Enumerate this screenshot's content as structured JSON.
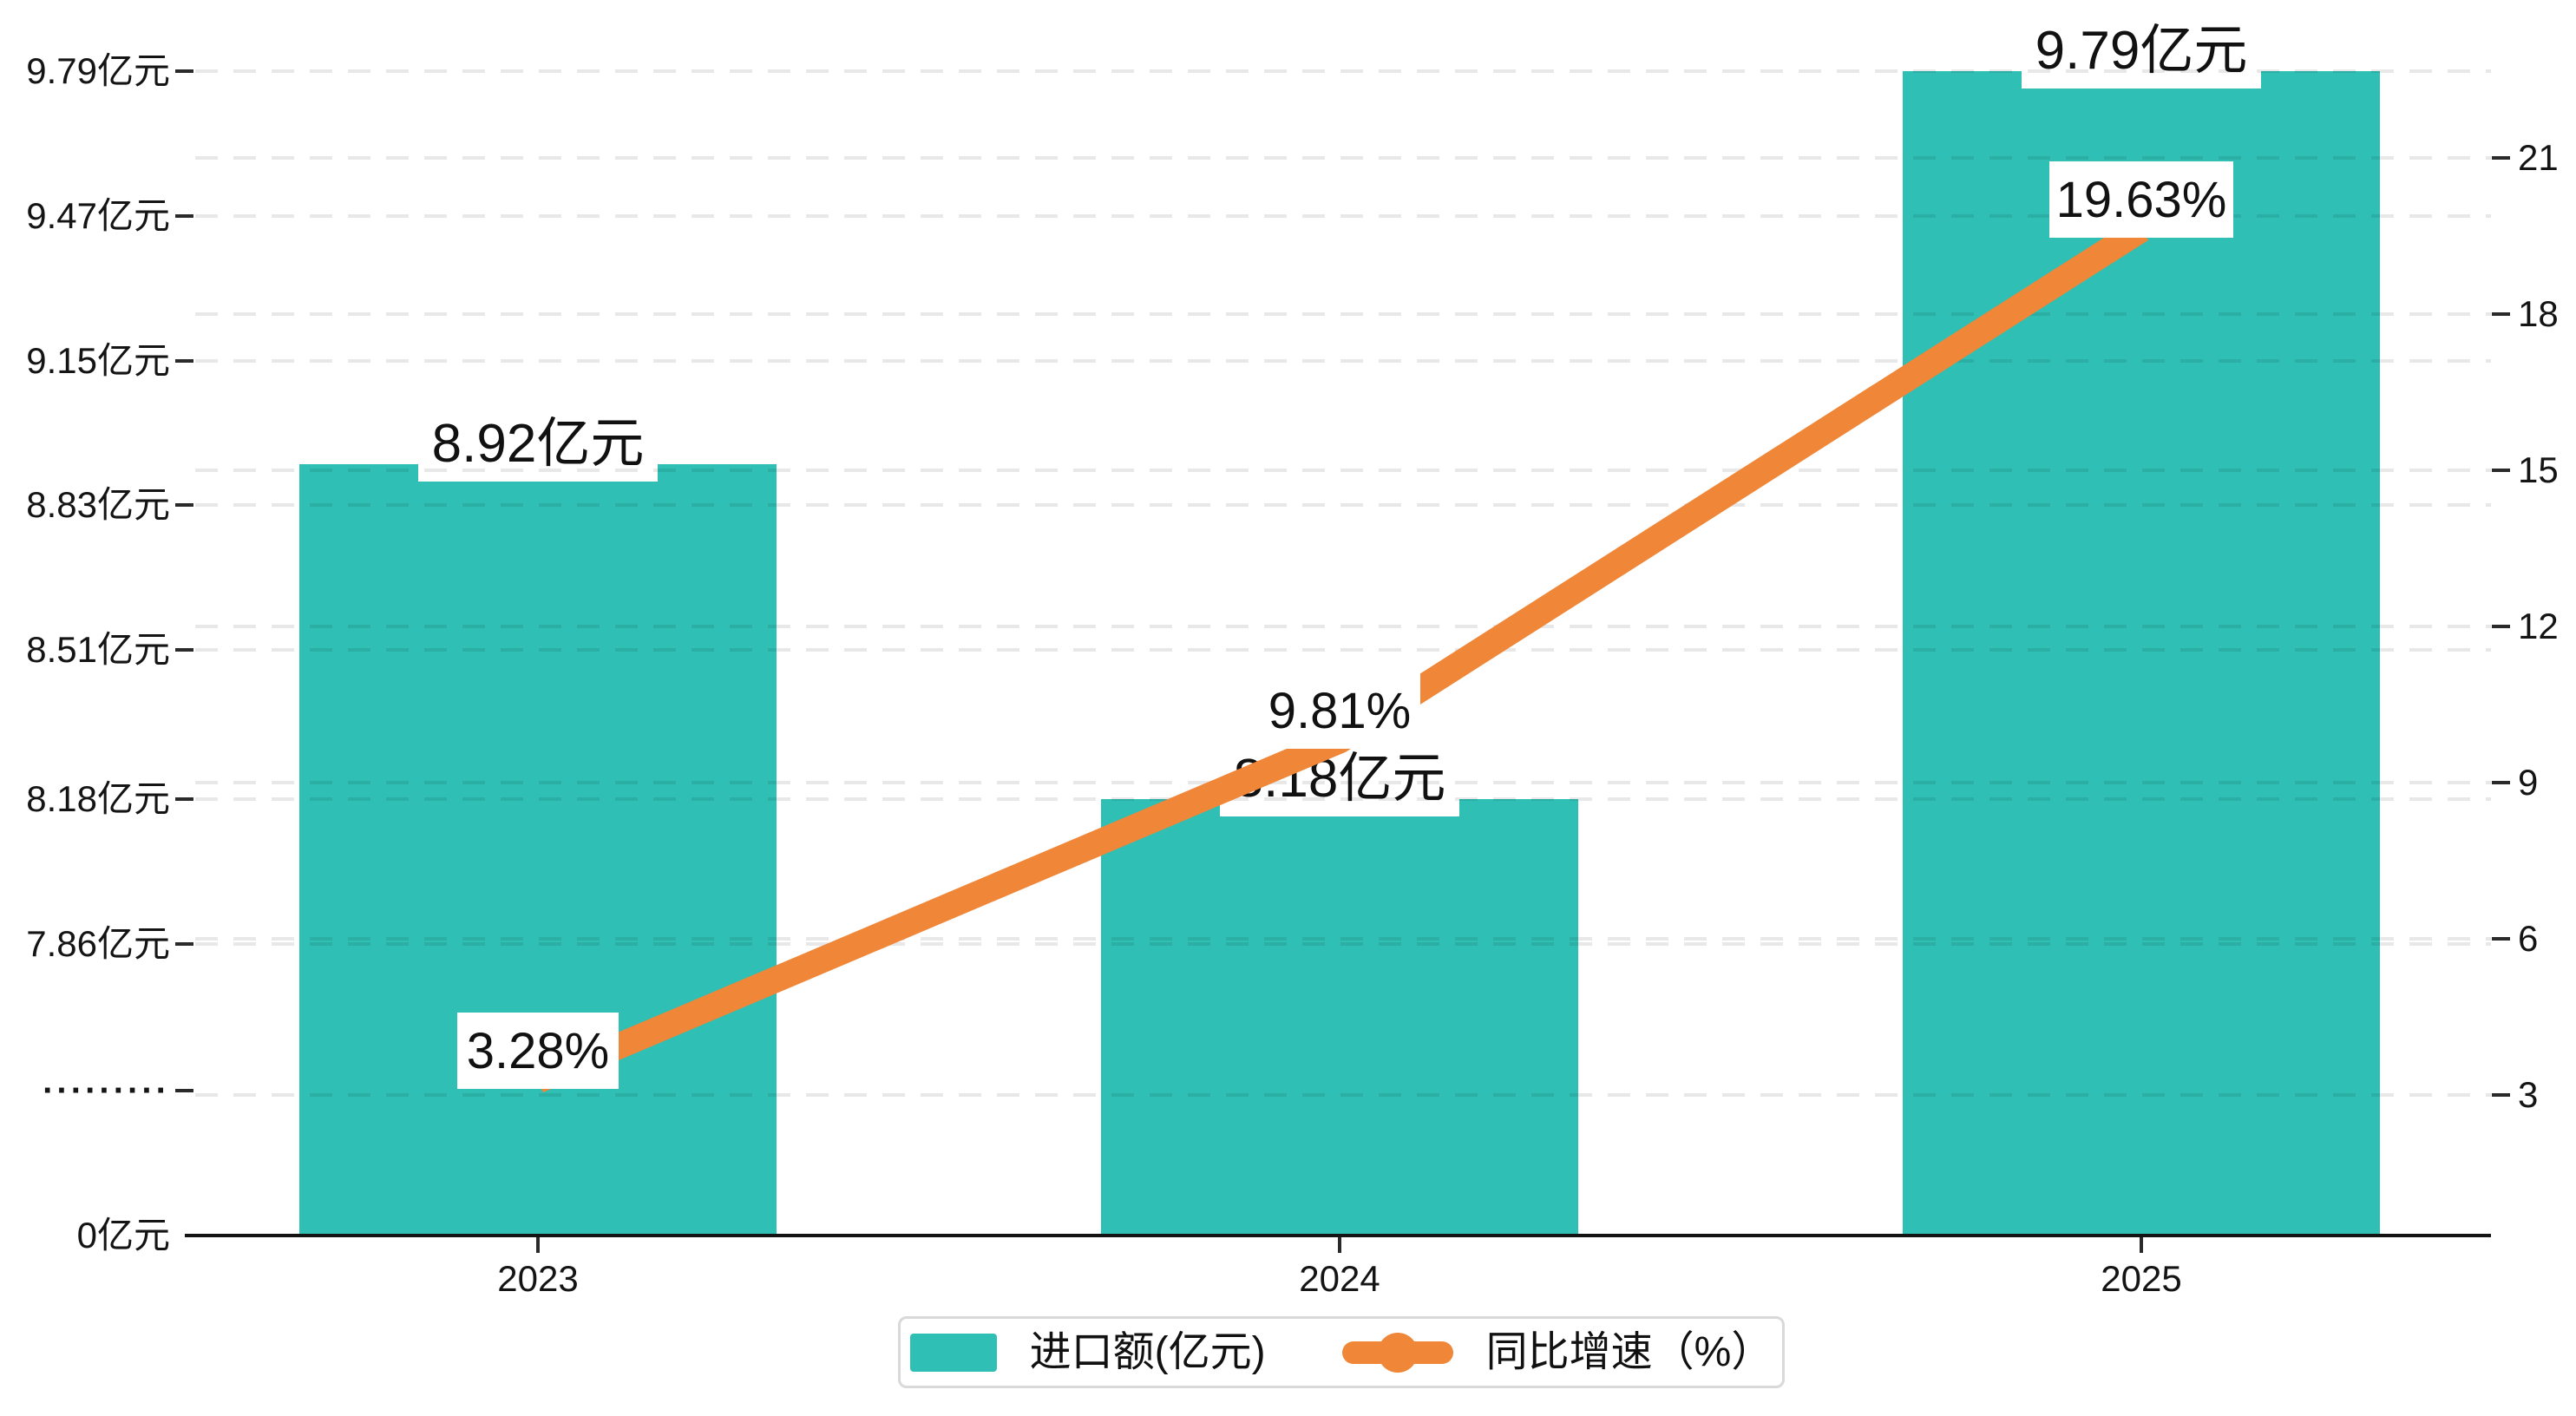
{
  "chart_data": {
    "type": "bar",
    "subtype": "bar+line dual-axis combo with broken left axis",
    "categories": [
      "2023",
      "2024",
      "2025"
    ],
    "series": [
      {
        "name": "进口额(亿元)",
        "type": "bar",
        "yaxis": "left",
        "unit": "亿元",
        "values": [
          8.92,
          8.18,
          9.79
        ],
        "data_labels": [
          "8.92亿元",
          "8.18亿元",
          "9.79亿元"
        ],
        "color": "#2fbfb4"
      },
      {
        "name": "同比增速（%）",
        "type": "line",
        "yaxis": "right",
        "unit": "%",
        "values": [
          3.28,
          9.81,
          19.63
        ],
        "data_labels": [
          "3.28%",
          "9.81%",
          "19.63%"
        ],
        "color": "#f08637"
      }
    ],
    "left_axis": {
      "tick_labels": [
        "9.79亿元",
        "9.47亿元",
        "9.15亿元",
        "8.83亿元",
        "8.51亿元",
        "8.18亿元",
        "7.86亿元",
        "·········",
        "0亿元"
      ],
      "tick_values": [
        9.79,
        9.47,
        9.15,
        8.83,
        8.51,
        8.18,
        7.86,
        null,
        0
      ],
      "has_break": true,
      "break_tick_index": 7,
      "range_top": 9.79,
      "range_bottom_shown": 7.86
    },
    "right_axis": {
      "tick_labels": [
        "21",
        "18",
        "15",
        "12",
        "9",
        "6",
        "3"
      ],
      "tick_values": [
        21,
        18,
        15,
        12,
        9,
        6,
        3
      ],
      "min": 3,
      "max": 21,
      "step": 3
    },
    "x_axis": {
      "tick_labels": [
        "2023",
        "2024",
        "2025"
      ]
    },
    "grid": "dashed horizontal gridlines for both y axes",
    "legend_position": "bottom-center",
    "title": ""
  },
  "legend": {
    "items": [
      {
        "label": "进口额(亿元)",
        "marker": "bar-swatch",
        "color": "#2fbfb4"
      },
      {
        "label": "同比增速（%）",
        "marker": "line-with-dot",
        "color": "#f08637"
      }
    ]
  },
  "colors": {
    "bar": "#2fbfb4",
    "line": "#f08637",
    "axis": "#141414",
    "gridline": "rgba(0,0,0,0.09)",
    "label_box_bg": "#ffffff",
    "legend_border": "#d9d9d9",
    "background": "#ffffff"
  }
}
